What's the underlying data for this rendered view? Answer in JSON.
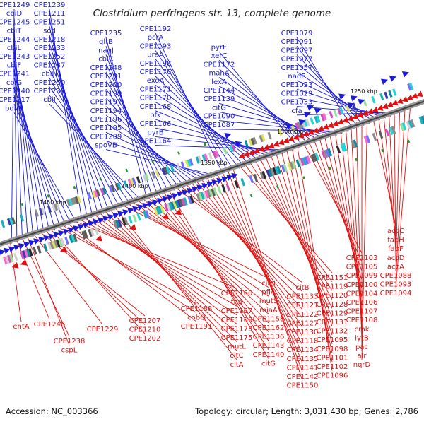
{
  "title": "Clostridium perfringens str. 13, complete genome",
  "accession": "Accession: NC_003366",
  "summary": "Topology: circular; Length: 3,031,430 bp; Genes: 2,786",
  "colors": {
    "forward": "#1a1ad8",
    "reverse": "#e01010",
    "backbone": "#777777"
  },
  "ticks": [
    "1250 kbp",
    "1300 kbp",
    "1350 kbp",
    "1400 kbp",
    "1450 kbp"
  ],
  "forward_labels": [
    "CPE1249",
    "cbiD",
    "CPE1245",
    "cbiT",
    "CPE1244",
    "cbiL",
    "CPE1243",
    "cbiF",
    "CPE1241",
    "cbiG",
    "CPE1240",
    "CPE1217",
    "bdhB",
    "CPE1239",
    "CPE1211",
    "CPE1251",
    "sod",
    "CPE1218",
    "CPE1233",
    "CPE1252",
    "CPE1237",
    "cbiH",
    "CPE1250",
    "CPE1232",
    "cbiJ",
    "CPE1235",
    "gltB",
    "nagJ",
    "cbiC",
    "CPE1248",
    "CPE1201",
    "CPE1200",
    "CPE1199",
    "CPE1197",
    "CPE1194",
    "CPE1196",
    "CPE1195",
    "CPE1209",
    "spoVB",
    "CPE1192",
    "pcrA",
    "CPE1193",
    "uraA",
    "CPE1198",
    "CPE1176",
    "exoA",
    "CPE1171",
    "CPE1170",
    "CPE1168",
    "pfk",
    "CPE1166",
    "pyrB",
    "CPE1164",
    "pyrE",
    "xerC",
    "CPE1172",
    "manA",
    "lexA",
    "CPE1144",
    "CPE1139",
    "citG",
    "CPE1090",
    "CPE1087",
    "CPE1079",
    "CPE1091",
    "CPE1097",
    "CPE1077",
    "CPE1057",
    "nadE",
    "CPE1023",
    "CPE1029",
    "CPE1033",
    "cfa"
  ],
  "reverse_labels": [
    "entA",
    "CPE1246",
    "CPE1238",
    "cspL",
    "CPE1229",
    "CPE1207",
    "CPE1210",
    "CPE1202",
    "CPE1188",
    "cobQ",
    "CPE1191",
    "CPE1160",
    "thd",
    "CPE1167",
    "CPE1169",
    "CPE1173",
    "CPE1175",
    "mutL",
    "citC",
    "citA",
    "citN",
    "pflA",
    "mutS",
    "miaA",
    "CPE1158",
    "CPE1162",
    "CPE1136",
    "CPE1143",
    "CPE1140",
    "citG",
    "citB",
    "CPE1133",
    "CPE1121",
    "CPE1122",
    "CPE1127",
    "CPE1130",
    "CPE1118",
    "CPE1134",
    "CPE1135",
    "CPE1141",
    "CPE1142",
    "CPE1150",
    "CPE1151",
    "CPE1119",
    "CPE1120",
    "CPE1128",
    "CPE1129",
    "CPE1131",
    "CPE1132",
    "CPE1095",
    "CPE1098",
    "CPE1101",
    "CPE1102",
    "CPE1096",
    "CPE1103",
    "CPE1105",
    "CPE1099",
    "CPE1100",
    "CPE1104",
    "CPE1106",
    "CPE1107",
    "CPE1108",
    "cmk",
    "lytB",
    "pac",
    "alr",
    "nqrD",
    "accC",
    "fabH",
    "fabF",
    "accD",
    "accA",
    "CPE1088",
    "CPE1093",
    "CPE1094"
  ]
}
